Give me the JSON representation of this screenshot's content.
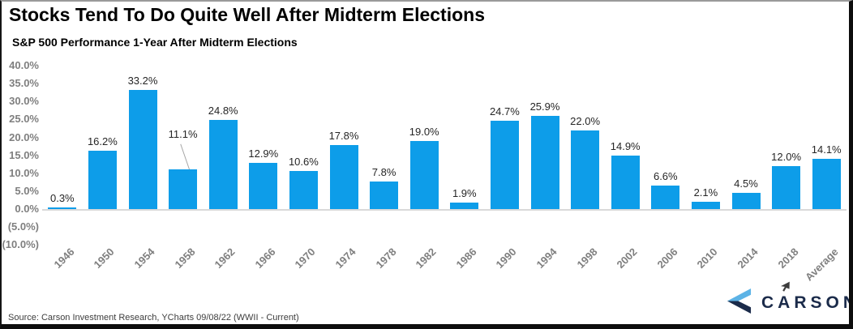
{
  "header": {
    "title": "Stocks Tend To Do Quite Well After Midterm Elections",
    "subtitle": "S&P 500 Performance 1-Year After Midterm Elections"
  },
  "chart_data": {
    "type": "bar",
    "title": "Stocks Tend To Do Quite Well After Midterm Elections",
    "subtitle": "S&P 500 Performance 1-Year After Midterm Elections",
    "categories": [
      "1946",
      "1950",
      "1954",
      "1958",
      "1962",
      "1966",
      "1970",
      "1974",
      "1978",
      "1982",
      "1986",
      "1990",
      "1994",
      "1998",
      "2002",
      "2006",
      "2010",
      "2014",
      "2018",
      "Average"
    ],
    "values": [
      0.3,
      16.2,
      33.2,
      11.1,
      24.8,
      12.9,
      10.6,
      17.8,
      7.8,
      19.0,
      1.9,
      24.7,
      25.9,
      22.0,
      14.9,
      6.6,
      2.1,
      4.5,
      12.0,
      14.1
    ],
    "value_labels": [
      "0.3%",
      "16.2%",
      "33.2%",
      "11.1%",
      "24.8%",
      "12.9%",
      "10.6%",
      "17.8%",
      "7.8%",
      "19.0%",
      "1.9%",
      "24.7%",
      "25.9%",
      "22.0%",
      "14.9%",
      "6.6%",
      "2.1%",
      "4.5%",
      "12.0%",
      "14.1%"
    ],
    "xlabel": "",
    "ylabel": "",
    "ylim": [
      -10,
      40
    ],
    "ytick_step": 5,
    "ytick_labels": [
      "40.0%",
      "35.0%",
      "30.0%",
      "25.0%",
      "20.0%",
      "15.0%",
      "10.0%",
      "5.0%",
      "0.0%",
      "(5.0%)",
      "(10.0%)"
    ],
    "grid": false,
    "legend": "none",
    "callout_index": 3
  },
  "footer": {
    "source": "Source: Carson Investment Research, YCharts 09/08/22 (WWII - Current)",
    "logo_text": "CARSON"
  },
  "colors": {
    "bar": "#0d9de9",
    "axis_label": "#7f7f7f",
    "value_label": "#262626",
    "baseline": "#d9d9d9",
    "logo_navy": "#1b2b4a",
    "logo_light_blue": "#5cb3e6"
  }
}
